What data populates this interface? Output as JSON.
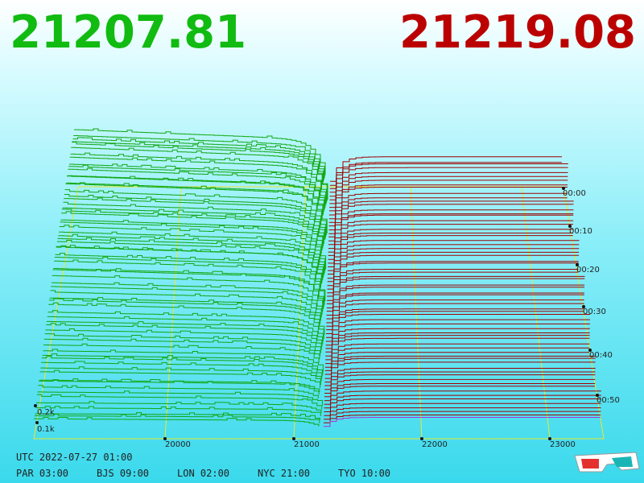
{
  "header": {
    "bid_price": "21207.81",
    "ask_price": "21219.08"
  },
  "price_axis": {
    "ticks": [
      "20000",
      "21000",
      "22000",
      "23000"
    ]
  },
  "time_axis": {
    "ticks": [
      "00:00",
      "00:10",
      "00:20",
      "00:30",
      "00:40",
      "00:50"
    ]
  },
  "depth_axis": {
    "ticks": [
      "0.2k",
      "0.1k"
    ]
  },
  "footer": {
    "utc": "UTC 2022-07-27 01:00",
    "timezones": [
      "PAR 03:00",
      "BJS 09:00",
      "LON 02:00",
      "NYC 21:00",
      "TYO 10:00"
    ]
  }
}
